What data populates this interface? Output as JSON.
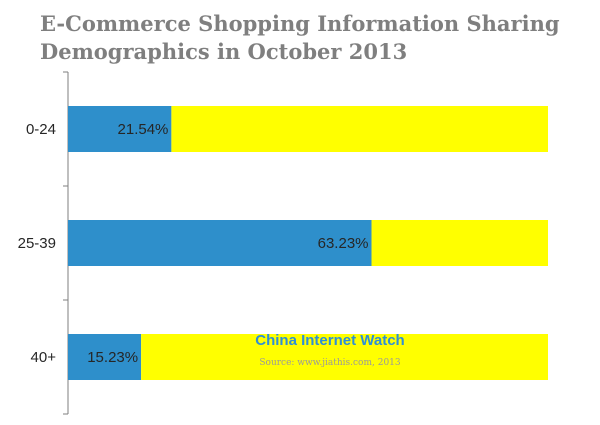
{
  "chart_data": {
    "type": "bar",
    "orientation": "horizontal",
    "stacked_to_total": true,
    "title_lines": [
      "E-Commerce Shopping Information Sharing",
      "Demographics in October 2013"
    ],
    "categories": [
      "0-24",
      "25-39",
      "40+"
    ],
    "series": [
      {
        "values": [
          21.54,
          63.23,
          15.23
        ],
        "color": "#2e8fcb"
      },
      {
        "values": [
          78.46,
          36.77,
          84.77
        ],
        "color": "#ffff00"
      }
    ],
    "data_labels": [
      "21.54%",
      "63.23%",
      "15.23%"
    ],
    "xlim": [
      0,
      100
    ],
    "grid": false,
    "legend": "none"
  },
  "watermark": {
    "title": "China Internet Watch",
    "source": "Source: www.jiathis.com,    2013"
  },
  "colors": {
    "title": "#7f7f7f",
    "axis": "#7f7f7f",
    "watermark_title": "#2e8fd6"
  }
}
